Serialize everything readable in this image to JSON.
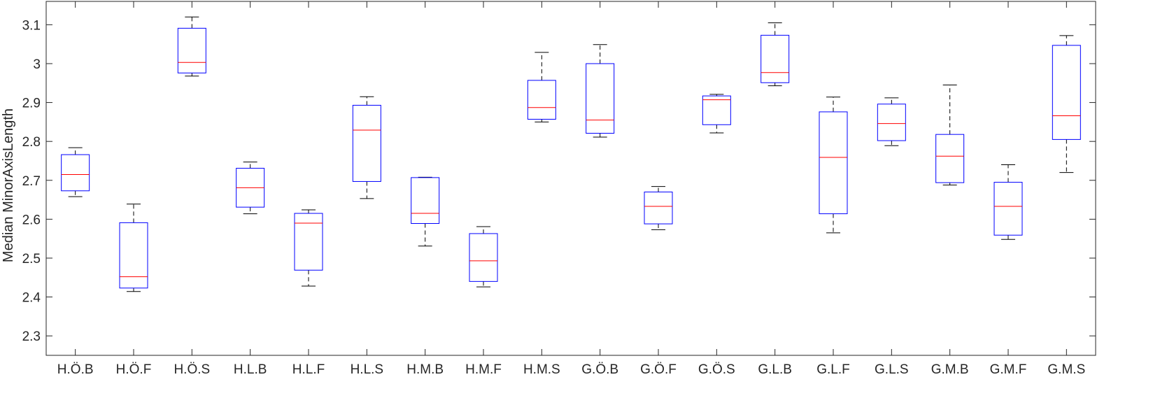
{
  "chart_data": {
    "type": "box",
    "title": "",
    "xlabel": "",
    "ylabel": "Median MinorAxisLength",
    "ylim": [
      2.25,
      3.16
    ],
    "yticks": [
      2.3,
      2.4,
      2.5,
      2.6,
      2.7,
      2.8,
      2.9,
      3,
      3.1
    ],
    "ytick_labels": [
      "2.3",
      "2.4",
      "2.5",
      "2.6",
      "2.7",
      "2.8",
      "2.9",
      "3",
      "3.1"
    ],
    "grid": false,
    "colors": {
      "box": "#0000ff",
      "median": "#ff0000",
      "whisker": "#000000",
      "axis": "#262626"
    },
    "categories": [
      "H.Ö.B",
      "H.Ö.F",
      "H.Ö.S",
      "H.L.B",
      "H.L.F",
      "H.L.S",
      "H.M.B",
      "H.M.F",
      "H.M.S",
      "G.Ö.B",
      "G.Ö.F",
      "G.Ö.S",
      "G.L.B",
      "G.L.F",
      "G.L.S",
      "G.M.B",
      "G.M.F",
      "G.M.S"
    ],
    "boxes": [
      {
        "min": 2.658,
        "q1": 2.673,
        "median": 2.715,
        "q3": 2.766,
        "max": 2.784
      },
      {
        "min": 2.414,
        "q1": 2.423,
        "median": 2.452,
        "q3": 2.591,
        "max": 2.639
      },
      {
        "min": 2.968,
        "q1": 2.976,
        "median": 3.003,
        "q3": 3.091,
        "max": 3.12
      },
      {
        "min": 2.614,
        "q1": 2.631,
        "median": 2.681,
        "q3": 2.731,
        "max": 2.747
      },
      {
        "min": 2.428,
        "q1": 2.469,
        "median": 2.59,
        "q3": 2.615,
        "max": 2.624
      },
      {
        "min": 2.653,
        "q1": 2.697,
        "median": 2.829,
        "q3": 2.893,
        "max": 2.915
      },
      {
        "min": 2.531,
        "q1": 2.589,
        "median": 2.615,
        "q3": 2.707,
        "max": 2.708
      },
      {
        "min": 2.426,
        "q1": 2.44,
        "median": 2.493,
        "q3": 2.563,
        "max": 2.581
      },
      {
        "min": 2.85,
        "q1": 2.857,
        "median": 2.887,
        "q3": 2.957,
        "max": 3.029
      },
      {
        "min": 2.811,
        "q1": 2.821,
        "median": 2.855,
        "q3": 3.0,
        "max": 3.049
      },
      {
        "min": 2.573,
        "q1": 2.588,
        "median": 2.633,
        "q3": 2.67,
        "max": 2.684
      },
      {
        "min": 2.822,
        "q1": 2.843,
        "median": 2.907,
        "q3": 2.917,
        "max": 2.921
      },
      {
        "min": 2.943,
        "q1": 2.951,
        "median": 2.977,
        "q3": 3.073,
        "max": 3.105
      },
      {
        "min": 2.565,
        "q1": 2.614,
        "median": 2.759,
        "q3": 2.876,
        "max": 2.914
      },
      {
        "min": 2.789,
        "q1": 2.802,
        "median": 2.846,
        "q3": 2.896,
        "max": 2.912
      },
      {
        "min": 2.688,
        "q1": 2.694,
        "median": 2.762,
        "q3": 2.818,
        "max": 2.945
      },
      {
        "min": 2.548,
        "q1": 2.559,
        "median": 2.633,
        "q3": 2.695,
        "max": 2.74
      },
      {
        "min": 2.72,
        "q1": 2.805,
        "median": 2.866,
        "q3": 3.047,
        "max": 3.072
      }
    ]
  }
}
